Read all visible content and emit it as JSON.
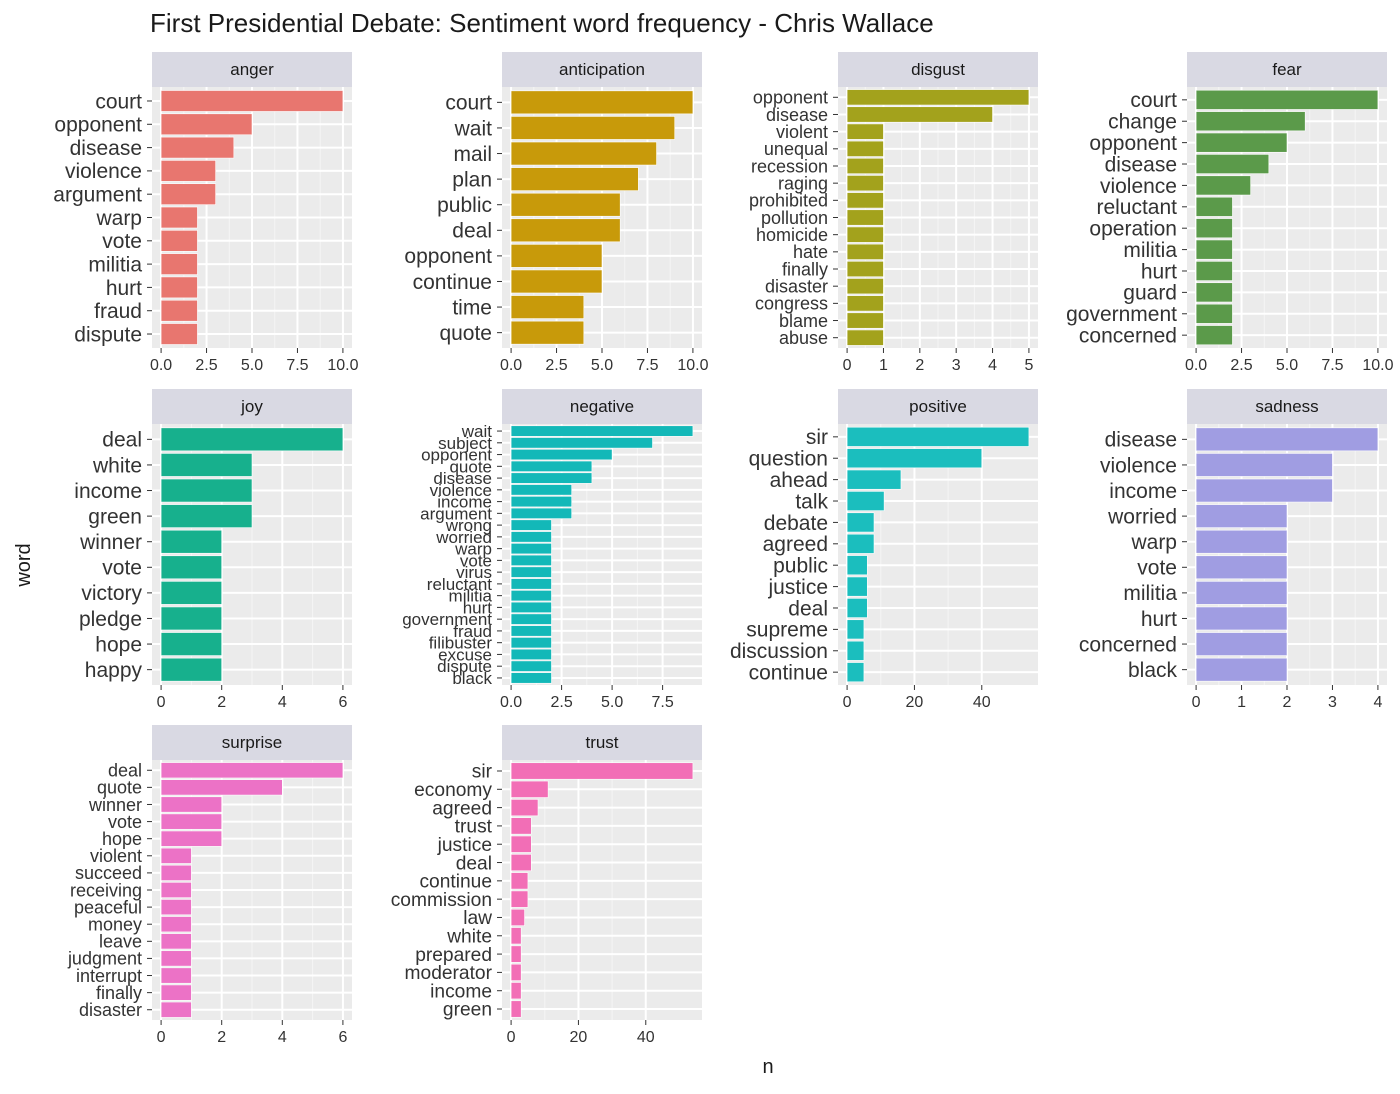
{
  "chart_data": {
    "type": "bar",
    "orientation": "horizontal",
    "facet_layout": "wrap",
    "title": "First Presidential Debate: Sentiment word frequency - Chris Wallace",
    "xlabel": "n",
    "ylabel": "word",
    "grid": true,
    "legend": "none",
    "panels": [
      {
        "name": "anger",
        "color": "#E8766F",
        "xlim": [
          0,
          10
        ],
        "xticks": [
          "0.0",
          "2.5",
          "5.0",
          "7.5",
          "10.0"
        ],
        "categories": [
          "court",
          "opponent",
          "disease",
          "violence",
          "argument",
          "warp",
          "vote",
          "militia",
          "hurt",
          "fraud",
          "dispute"
        ],
        "values": [
          10,
          5,
          4,
          3,
          3,
          2,
          2,
          2,
          2,
          2,
          2
        ]
      },
      {
        "name": "anticipation",
        "color": "#C89A0A",
        "xlim": [
          0,
          10
        ],
        "xticks": [
          "0.0",
          "2.5",
          "5.0",
          "7.5",
          "10.0"
        ],
        "categories": [
          "court",
          "wait",
          "mail",
          "plan",
          "public",
          "deal",
          "opponent",
          "continue",
          "time",
          "quote"
        ],
        "values": [
          10,
          9,
          8,
          7,
          6,
          6,
          5,
          5,
          4,
          4
        ]
      },
      {
        "name": "disgust",
        "color": "#A3A21C",
        "xlim": [
          0,
          5
        ],
        "xticks": [
          "0",
          "1",
          "2",
          "3",
          "4",
          "5"
        ],
        "categories": [
          "opponent",
          "disease",
          "violent",
          "unequal",
          "recession",
          "raging",
          "prohibited",
          "pollution",
          "homicide",
          "hate",
          "finally",
          "disaster",
          "congress",
          "blame",
          "abuse"
        ],
        "values": [
          5,
          4,
          1,
          1,
          1,
          1,
          1,
          1,
          1,
          1,
          1,
          1,
          1,
          1,
          1
        ]
      },
      {
        "name": "fear",
        "color": "#5B9A4A",
        "xlim": [
          0,
          10
        ],
        "xticks": [
          "0.0",
          "2.5",
          "5.0",
          "7.5",
          "10.0"
        ],
        "categories": [
          "court",
          "change",
          "opponent",
          "disease",
          "violence",
          "reluctant",
          "operation",
          "militia",
          "hurt",
          "guard",
          "government",
          "concerned"
        ],
        "values": [
          10,
          6,
          5,
          4,
          3,
          2,
          2,
          2,
          2,
          2,
          2,
          2
        ]
      },
      {
        "name": "joy",
        "color": "#17B08D",
        "xlim": [
          0,
          6
        ],
        "xticks": [
          "0",
          "2",
          "4",
          "6"
        ],
        "categories": [
          "deal",
          "white",
          "income",
          "green",
          "winner",
          "vote",
          "victory",
          "pledge",
          "hope",
          "happy"
        ],
        "values": [
          6,
          3,
          3,
          3,
          2,
          2,
          2,
          2,
          2,
          2
        ]
      },
      {
        "name": "negative",
        "color": "#13B8B8",
        "xlim": [
          0,
          9
        ],
        "xticks": [
          "0.0",
          "2.5",
          "5.0",
          "7.5"
        ],
        "categories": [
          "wait",
          "subject",
          "opponent",
          "quote",
          "disease",
          "violence",
          "income",
          "argument",
          "wrong",
          "worried",
          "warp",
          "vote",
          "virus",
          "reluctant",
          "militia",
          "hurt",
          "government",
          "fraud",
          "filibuster",
          "excuse",
          "dispute",
          "black"
        ],
        "values": [
          9,
          7,
          5,
          4,
          4,
          3,
          3,
          3,
          2,
          2,
          2,
          2,
          2,
          2,
          2,
          2,
          2,
          2,
          2,
          2,
          2,
          2
        ]
      },
      {
        "name": "positive",
        "color": "#1BBEBE",
        "xlim": [
          0,
          54
        ],
        "xticks": [
          "0",
          "20",
          "40"
        ],
        "categories": [
          "sir",
          "question",
          "ahead",
          "talk",
          "debate",
          "agreed",
          "public",
          "justice",
          "deal",
          "supreme",
          "discussion",
          "continue"
        ],
        "values": [
          54,
          40,
          16,
          11,
          8,
          8,
          6,
          6,
          6,
          5,
          5,
          5
        ]
      },
      {
        "name": "sadness",
        "color": "#A09DE2",
        "xlim": [
          0,
          4
        ],
        "xticks": [
          "0",
          "1",
          "2",
          "3",
          "4"
        ],
        "categories": [
          "disease",
          "violence",
          "income",
          "worried",
          "warp",
          "vote",
          "militia",
          "hurt",
          "concerned",
          "black"
        ],
        "values": [
          4,
          3,
          3,
          2,
          2,
          2,
          2,
          2,
          2,
          2
        ]
      },
      {
        "name": "surprise",
        "color": "#EC72C6",
        "xlim": [
          0,
          6
        ],
        "xticks": [
          "0",
          "2",
          "4",
          "6"
        ],
        "categories": [
          "deal",
          "quote",
          "winner",
          "vote",
          "hope",
          "violent",
          "succeed",
          "receiving",
          "peaceful",
          "money",
          "leave",
          "judgment",
          "interrupt",
          "finally",
          "disaster"
        ],
        "values": [
          6,
          4,
          2,
          2,
          2,
          1,
          1,
          1,
          1,
          1,
          1,
          1,
          1,
          1,
          1
        ]
      },
      {
        "name": "trust",
        "color": "#F26EB6",
        "xlim": [
          0,
          54
        ],
        "xticks": [
          "0",
          "20",
          "40"
        ],
        "categories": [
          "sir",
          "economy",
          "agreed",
          "trust",
          "justice",
          "deal",
          "continue",
          "commission",
          "law",
          "white",
          "prepared",
          "moderator",
          "income",
          "green"
        ],
        "values": [
          54,
          11,
          8,
          6,
          6,
          6,
          5,
          5,
          4,
          3,
          3,
          3,
          3,
          3
        ]
      }
    ]
  }
}
